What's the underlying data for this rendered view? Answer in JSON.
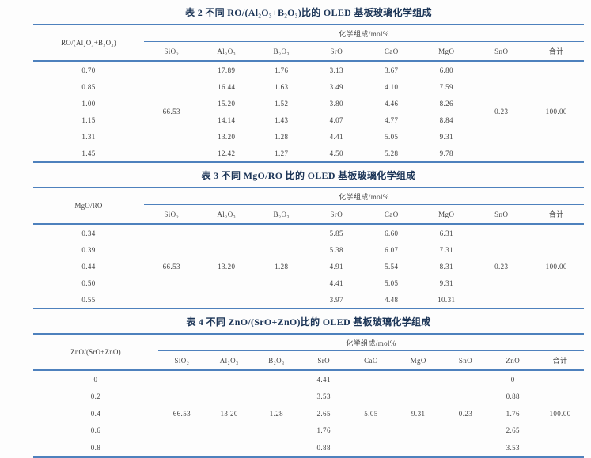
{
  "theme": {
    "background": "#fdfdfd",
    "rule_color": "#4e81bd",
    "title_color": "#1c3557",
    "text_color": "#3f3f3f"
  },
  "tables": [
    {
      "title": "表 2  不同 RO/(Al₂O₃+B₂O₃)比的 OLED 基板玻璃化学组成",
      "row_header": "RO/(Al₂O₃+B₂O₃)",
      "group_header": "化学组成/mol%",
      "columns": [
        "SiO₂",
        "Al₂O₃",
        "B₂O₃",
        "SrO",
        "CaO",
        "MgO",
        "SnO",
        "合计"
      ],
      "rows": [
        [
          "0.70",
          {
            "t": "66.53",
            "rs": 6
          },
          "17.89",
          "1.76",
          "3.13",
          "3.67",
          "6.80",
          {
            "t": "0.23",
            "rs": 6
          },
          {
            "t": "100.00",
            "rs": 6
          }
        ],
        [
          "0.85",
          null,
          "16.44",
          "1.63",
          "3.49",
          "4.10",
          "7.59",
          null,
          null
        ],
        [
          "1.00",
          null,
          "15.20",
          "1.52",
          "3.80",
          "4.46",
          "8.26",
          null,
          null
        ],
        [
          "1.15",
          null,
          "14.14",
          "1.43",
          "4.07",
          "4.77",
          "8.84",
          null,
          null
        ],
        [
          "1.31",
          null,
          "13.20",
          "1.28",
          "4.41",
          "5.05",
          "9.31",
          null,
          null
        ],
        [
          "1.45",
          null,
          "12.42",
          "1.27",
          "4.50",
          "5.28",
          "9.78",
          null,
          null
        ]
      ]
    },
    {
      "title": "表 3  不同 MgO/RO 比的 OLED 基板玻璃化学组成",
      "row_header": "MgO/RO",
      "group_header": "化学组成/mol%",
      "columns": [
        "SiO₂",
        "Al₂O₃",
        "B₂O₃",
        "SrO",
        "CaO",
        "MgO",
        "SnO",
        "合计"
      ],
      "rows": [
        [
          "0.34",
          {
            "t": "66.53",
            "rs": 5
          },
          {
            "t": "13.20",
            "rs": 5
          },
          {
            "t": "1.28",
            "rs": 5
          },
          "5.85",
          "6.60",
          "6.31",
          {
            "t": "0.23",
            "rs": 5
          },
          {
            "t": "100.00",
            "rs": 5
          }
        ],
        [
          "0.39",
          null,
          null,
          null,
          "5.38",
          "6.07",
          "7.31",
          null,
          null
        ],
        [
          "0.44",
          null,
          null,
          null,
          "4.91",
          "5.54",
          "8.31",
          null,
          null
        ],
        [
          "0.50",
          null,
          null,
          null,
          "4.41",
          "5.05",
          "9.31",
          null,
          null
        ],
        [
          "0.55",
          null,
          null,
          null,
          "3.97",
          "4.48",
          "10.31",
          null,
          null
        ]
      ]
    },
    {
      "title": "表 4  不同 ZnO/(SrO+ZnO)比的 OLED 基板玻璃化学组成",
      "row_header": "ZnO/(SrO+ZnO)",
      "group_header": "化学组成/mol%",
      "columns": [
        "SiO₂",
        "Al₂O₃",
        "B₂O₃",
        "SrO",
        "CaO",
        "MgO",
        "SnO",
        "ZnO",
        "合计"
      ],
      "rows": [
        [
          "0",
          {
            "t": "66.53",
            "rs": 5
          },
          {
            "t": "13.20",
            "rs": 5
          },
          {
            "t": "1.28",
            "rs": 5
          },
          "4.41",
          {
            "t": "5.05",
            "rs": 5
          },
          {
            "t": "9.31",
            "rs": 5
          },
          {
            "t": "0.23",
            "rs": 5
          },
          "0",
          {
            "t": "100.00",
            "rs": 5
          }
        ],
        [
          "0.2",
          null,
          null,
          null,
          "3.53",
          null,
          null,
          null,
          "0.88",
          null
        ],
        [
          "0.4",
          null,
          null,
          null,
          "2.65",
          null,
          null,
          null,
          "1.76",
          null
        ],
        [
          "0.6",
          null,
          null,
          null,
          "1.76",
          null,
          null,
          null,
          "2.65",
          null
        ],
        [
          "0.8",
          null,
          null,
          null,
          "0.88",
          null,
          null,
          null,
          "3.53",
          null
        ]
      ]
    }
  ]
}
